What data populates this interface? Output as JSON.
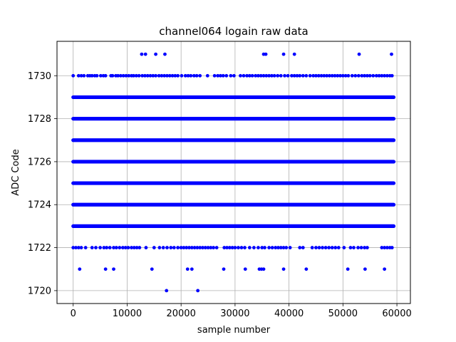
{
  "chart_data": {
    "type": "scatter",
    "title": "channel064 logain raw data",
    "xlabel": "sample number",
    "ylabel": "ADC Code",
    "xlim": [
      -3000,
      62500
    ],
    "ylim": [
      1719.4,
      1731.6
    ],
    "x_ticks": [
      0,
      10000,
      20000,
      30000,
      40000,
      50000,
      60000
    ],
    "y_ticks": [
      1720,
      1722,
      1724,
      1726,
      1728,
      1730
    ],
    "grid": true,
    "marker_color": "#0000ff",
    "x_count": 59400,
    "dense_levels": [
      1723,
      1724,
      1725,
      1726,
      1727,
      1728,
      1729
    ],
    "sparse_levels": [
      {
        "y": 1730,
        "x": [
          0,
          1000,
          1500,
          2000,
          2700,
          3100,
          3500,
          4000,
          4400,
          5100,
          5600,
          6000,
          7000,
          7300,
          7900,
          8300,
          8800,
          9300,
          9800,
          10300,
          10800,
          11200,
          11700,
          12200,
          12800,
          13300,
          13800,
          14300,
          14800,
          15300,
          15900,
          16400,
          16900,
          17400,
          17900,
          18400,
          18900,
          19400,
          20100,
          20800,
          21300,
          21800,
          22400,
          22900,
          23500,
          24900,
          26200,
          26800,
          27300,
          27800,
          28400,
          29200,
          29800,
          31000,
          31600,
          32200,
          32700,
          33200,
          33800,
          34300,
          34800,
          35300,
          35800,
          36300,
          36800,
          37300,
          37900,
          38500,
          39200,
          39800,
          40500,
          41000,
          41500,
          42000,
          42600,
          43200,
          43900,
          44500,
          45000,
          45500,
          46000,
          46500,
          47000,
          47500,
          48000,
          48500,
          49000,
          49500,
          50000,
          50500,
          51000,
          51700,
          52300,
          52900,
          53500,
          54000,
          54500,
          55000,
          55600,
          56200,
          56700,
          57200,
          57700,
          58200,
          58700,
          59100
        ]
      },
      {
        "y": 1731,
        "x": [
          12700,
          13400,
          15300,
          17000,
          35300,
          35700,
          39000,
          41000,
          53000,
          59000
        ]
      },
      {
        "y": 1722,
        "x": [
          0,
          500,
          1000,
          1500,
          2300,
          3500,
          4200,
          5000,
          5700,
          6200,
          6800,
          7500,
          8000,
          8600,
          9200,
          9700,
          10200,
          10800,
          11300,
          11800,
          12300,
          13500,
          15000,
          16000,
          16700,
          17400,
          18100,
          18700,
          19400,
          20000,
          20500,
          21000,
          21500,
          22000,
          22500,
          23000,
          23500,
          24000,
          24500,
          25000,
          25500,
          26000,
          26600,
          28000,
          28500,
          29000,
          29500,
          30000,
          30600,
          31200,
          31800,
          32700,
          33500,
          34300,
          35000,
          35500,
          36300,
          36900,
          37500,
          38000,
          38500,
          39000,
          39500,
          40200,
          42000,
          42600,
          44300,
          45000,
          45600,
          46200,
          46800,
          47400,
          48000,
          48600,
          49200,
          50200,
          51400,
          52000,
          52800,
          53400,
          54000,
          54500,
          57200,
          57700,
          58200,
          58700,
          59100
        ]
      },
      {
        "y": 1721,
        "x": [
          1200,
          6000,
          7500,
          14600,
          21200,
          22000,
          27900,
          31900,
          34500,
          34900,
          35300,
          39000,
          43200,
          50900,
          54100,
          57700
        ]
      },
      {
        "y": 1720,
        "x": [
          17300,
          23100
        ]
      }
    ]
  }
}
